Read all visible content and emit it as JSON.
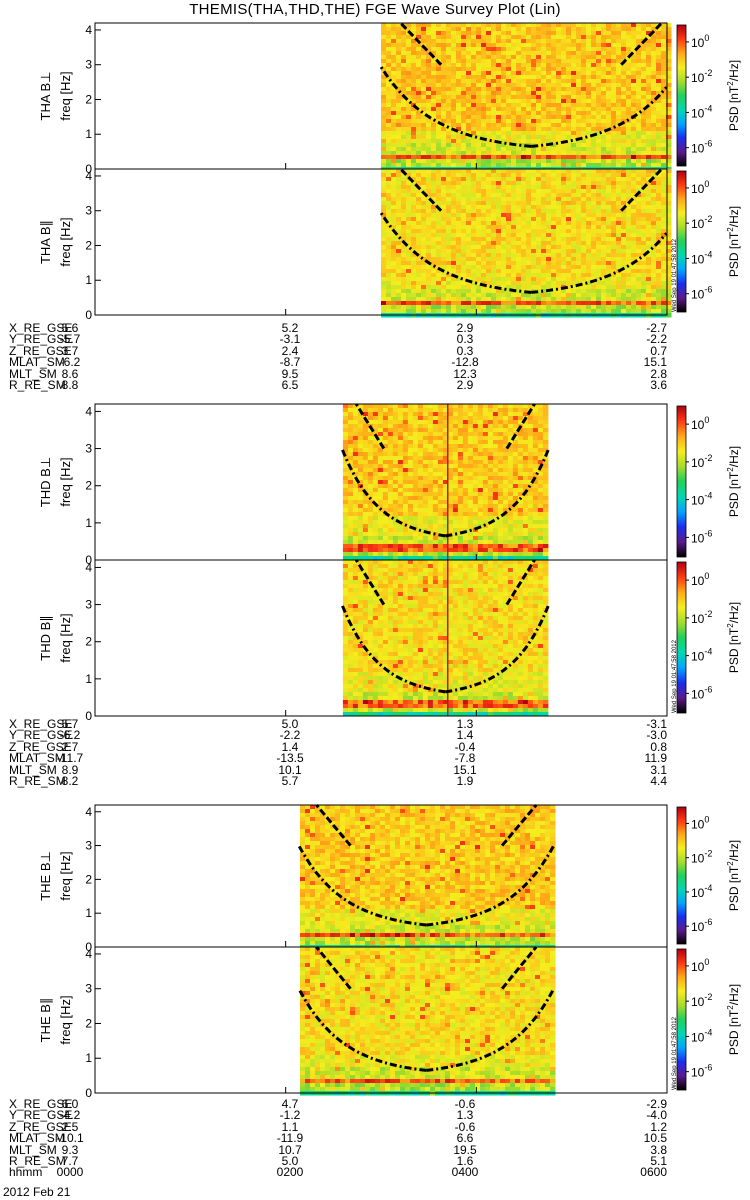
{
  "title": "THEMIS(THA,THD,THE) FGE Wave Survey Plot (Lin)",
  "time_axis": {
    "label": "hhmm",
    "ticks": [
      "0000",
      "0200",
      "0400",
      "0600"
    ],
    "date": "2012 Feb 21"
  },
  "colorbar": {
    "label": "PSD [nT²/Hz]",
    "label_base": "PSD [nT",
    "label_sup": "2",
    "label_end": "/Hz]",
    "ticks": [
      "10^0",
      "10^-2",
      "10^-4",
      "10^-6"
    ],
    "stamp": "Wed Sep 19 01:47:58 2012",
    "colors": [
      "#000000",
      "#5a1a8c",
      "#1b2ef0",
      "#00a6ff",
      "#00d8b0",
      "#22d05a",
      "#a8dc2a",
      "#f5ee1e",
      "#ffa818",
      "#ff3a12",
      "#b00010"
    ]
  },
  "chart_data": {
    "type": "heatmap",
    "x_range_hhmm": [
      "0000",
      "0600"
    ],
    "ylabel": "freq [Hz]",
    "yticks": [
      "0",
      "1",
      "2",
      "3",
      "4"
    ],
    "ylim": [
      0,
      4.2
    ],
    "panels": [
      {
        "label": "THA B⊥",
        "probe": "THA",
        "start_h": 3.0,
        "end_h": 6.15,
        "vline_h": null
      },
      {
        "label": "THA B∥",
        "probe": "THA",
        "start_h": 3.0,
        "end_h": 6.15,
        "vline_h": null
      },
      {
        "label": "THD B⊥",
        "probe": "THD",
        "start_h": 2.6,
        "end_h": 4.75,
        "vline_h": 3.7
      },
      {
        "label": "THD B∥",
        "probe": "THD",
        "start_h": 2.6,
        "end_h": 4.75,
        "vline_h": 3.7
      },
      {
        "label": "THE B⊥",
        "probe": "THE",
        "start_h": 2.15,
        "end_h": 4.8,
        "vline_h": null
      },
      {
        "label": "THE B∥",
        "probe": "THE",
        "start_h": 2.15,
        "end_h": 4.8,
        "vline_h": null
      }
    ]
  },
  "ephemeris": [
    {
      "probe": "THA",
      "rows": [
        {
          "name": "X_RE_GSE",
          "values": [
            "5.6",
            "5.2",
            "2.9",
            "-2.7"
          ]
        },
        {
          "name": "Y_RE_GSE",
          "values": [
            "-5.7",
            "-3.1",
            "0.3",
            "-2.2"
          ]
        },
        {
          "name": "Z_RE_GSE",
          "values": [
            "3.7",
            "2.4",
            "0.3",
            "0.7"
          ]
        },
        {
          "name": "MLAT_SM",
          "values": [
            "-6.2",
            "-8.7",
            "-12.8",
            "15.1"
          ]
        },
        {
          "name": "MLT_SM",
          "values": [
            "8.6",
            "9.5",
            "12.3",
            "2.8"
          ]
        },
        {
          "name": "R_RE_SM",
          "values": [
            "8.8",
            "6.5",
            "2.9",
            "3.6"
          ]
        }
      ]
    },
    {
      "probe": "THD",
      "rows": [
        {
          "name": "X_RE_GSE",
          "values": [
            "5.7",
            "5.0",
            "1.3",
            "-3.1"
          ]
        },
        {
          "name": "Y_RE_GSE",
          "values": [
            "-6.2",
            "-2.2",
            "1.4",
            "-3.0"
          ]
        },
        {
          "name": "Z_RE_GSE",
          "values": [
            "2.7",
            "1.4",
            "-0.4",
            "0.8"
          ]
        },
        {
          "name": "MLAT_SM",
          "values": [
            "-11.7",
            "-13.5",
            "-7.8",
            "11.9"
          ]
        },
        {
          "name": "MLT_SM",
          "values": [
            "8.9",
            "10.1",
            "15.1",
            "3.1"
          ]
        },
        {
          "name": "R_RE_SM",
          "values": [
            "8.2",
            "5.7",
            "1.9",
            "4.4"
          ]
        }
      ]
    },
    {
      "probe": "THE",
      "rows": [
        {
          "name": "X_RE_GSE",
          "values": [
            "6.0",
            "4.7",
            "-0.6",
            "-2.9"
          ]
        },
        {
          "name": "Y_RE_GSE",
          "values": [
            "-4.2",
            "-1.2",
            "1.3",
            "-4.0"
          ]
        },
        {
          "name": "Z_RE_GSE",
          "values": [
            "2.5",
            "1.1",
            "-0.6",
            "1.2"
          ]
        },
        {
          "name": "MLAT_SM",
          "values": [
            "-10.1",
            "-11.9",
            "6.6",
            "10.5"
          ]
        },
        {
          "name": "MLT_SM",
          "values": [
            "9.3",
            "10.7",
            "19.5",
            "3.8"
          ]
        },
        {
          "name": "R_RE_SM",
          "values": [
            "7.7",
            "5.0",
            "1.6",
            "5.1"
          ]
        }
      ]
    }
  ]
}
